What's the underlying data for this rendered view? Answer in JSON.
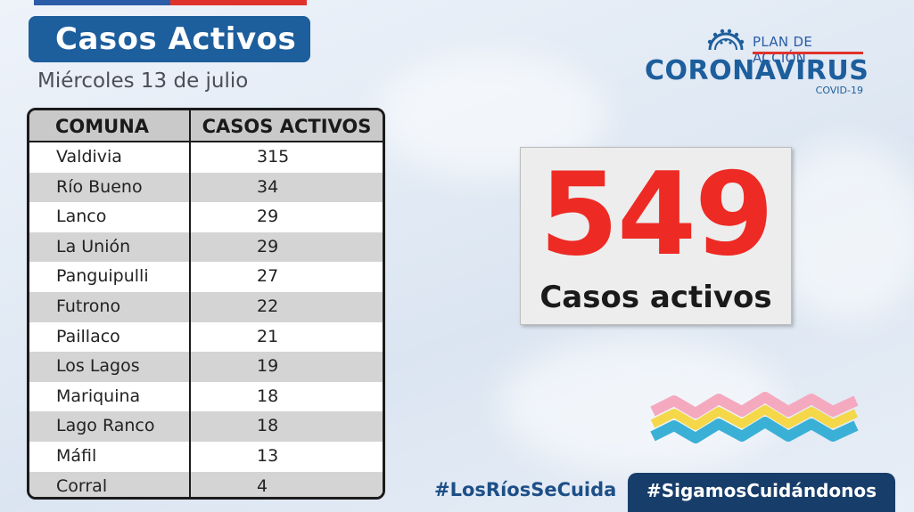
{
  "header": {
    "title": "Casos Activos",
    "date": "Miércoles 13 de julio"
  },
  "logo": {
    "plan_text": "PLAN DE ACCIÓN",
    "brand_text": "CORONAVIRUS",
    "sub_text": "COVID-19"
  },
  "table": {
    "headers": [
      "COMUNA",
      "CASOS ACTIVOS"
    ],
    "rows": [
      {
        "comuna": "Valdivia",
        "casos": "315"
      },
      {
        "comuna": "Río Bueno",
        "casos": "34"
      },
      {
        "comuna": "Lanco",
        "casos": "29"
      },
      {
        "comuna": "La Unión",
        "casos": "29"
      },
      {
        "comuna": "Panguipulli",
        "casos": "27"
      },
      {
        "comuna": "Futrono",
        "casos": "22"
      },
      {
        "comuna": "Paillaco",
        "casos": "21"
      },
      {
        "comuna": "Los Lagos",
        "casos": "19"
      },
      {
        "comuna": "Mariquina",
        "casos": "18"
      },
      {
        "comuna": "Lago Ranco",
        "casos": "18"
      },
      {
        "comuna": "Máfil",
        "casos": "13"
      },
      {
        "comuna": "Corral",
        "casos": "4"
      }
    ]
  },
  "summary": {
    "total": "549",
    "label": "Casos activos"
  },
  "footer": {
    "hashtag_left": "#LosRíosSeCuida",
    "hashtag_right": "#SigamosCuidándonos"
  },
  "colors": {
    "accent_blue": "#1d5e9c",
    "dark_blue": "#173d6a",
    "highlight_red": "#ee2a24",
    "wave_pink": "#f4a9bf",
    "wave_yellow": "#f5d84a",
    "wave_cyan": "#3ab0d6"
  }
}
